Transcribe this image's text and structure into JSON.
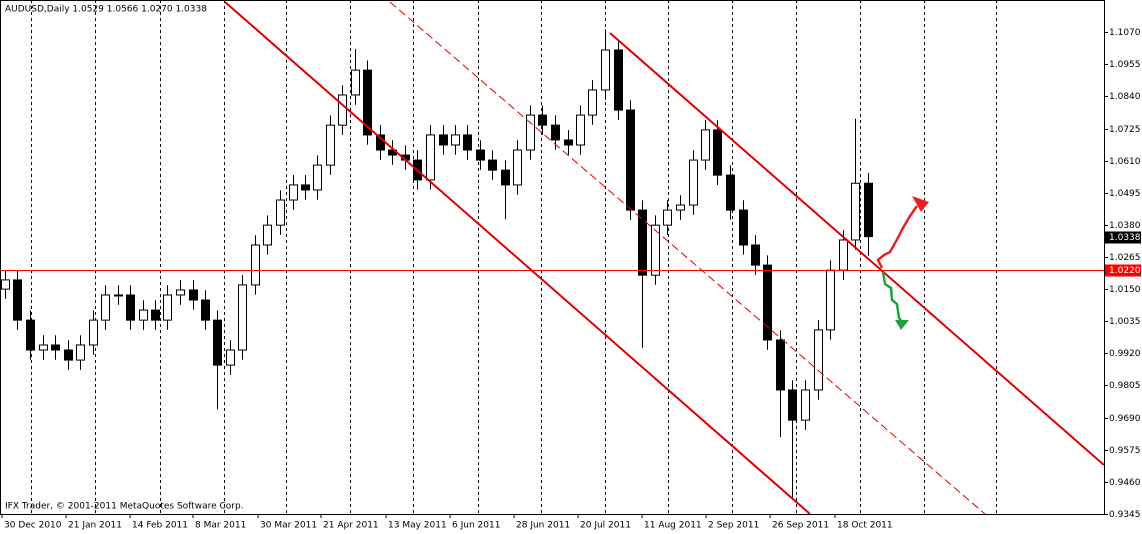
{
  "chart_data": {
    "type": "candlestick",
    "title": "AUDUSD,Daily  1.0529 1.0566 1.0270 1.0338",
    "footer": "IFX Trader, © 2001-2011 MetaQuotes Software Corp.",
    "open": [
      1.015,
      1.0183,
      1.0039,
      0.9932,
      0.995,
      0.9932,
      0.9896,
      0.995,
      1.0039,
      1.0129,
      1.0129,
      1.0039,
      1.0075,
      1.0039,
      1.0129,
      1.0147,
      1.0111,
      1.0039,
      0.9878,
      0.9932,
      1.0165,
      1.0308,
      1.0379,
      1.0469,
      1.0523,
      1.0505,
      1.0594,
      1.0737,
      1.0845,
      1.0934,
      1.0702,
      1.0648,
      1.063,
      1.0612,
      1.0541,
      1.0702,
      1.0666,
      1.0702,
      1.0648,
      1.0612,
      1.0576,
      1.0523,
      1.0648,
      1.0773,
      1.0737,
      1.0684,
      1.0666,
      1.0773,
      1.0863,
      1.1006,
      1.0791,
      1.0433,
      1.02,
      1.0379,
      1.0433,
      1.0451,
      1.0612,
      1.072,
      1.0558,
      1.0433,
      1.0308,
      1.0236,
      0.9968,
      0.9789,
      0.9681,
      0.9789,
      1.0004,
      1.0218,
      1.0326,
      1.0529
    ],
    "high": [
      1.0218,
      1.0218,
      1.0074,
      0.9985,
      0.9985,
      0.9967,
      0.9985,
      1.0074,
      1.0164,
      1.0164,
      1.0164,
      1.011,
      1.011,
      1.0164,
      1.0182,
      1.0182,
      1.0146,
      1.0074,
      0.9967,
      1.02,
      1.0343,
      1.0414,
      1.0504,
      1.0558,
      1.0558,
      1.0629,
      1.0772,
      1.088,
      1.101,
      1.0969,
      1.0737,
      1.0683,
      1.0665,
      1.0647,
      1.0737,
      1.0737,
      1.0737,
      1.0737,
      1.0683,
      1.0647,
      1.0611,
      1.0683,
      1.0808,
      1.0808,
      1.0772,
      1.0719,
      1.0808,
      1.0898,
      1.108,
      1.1041,
      1.0826,
      1.0468,
      1.0414,
      1.0468,
      1.0486,
      1.0647,
      1.0755,
      1.0755,
      1.0593,
      1.0468,
      1.0343,
      1.0271,
      1.0003,
      0.9824,
      0.9824,
      1.0039,
      1.0253,
      1.0361,
      1.076,
      1.0566
    ],
    "low": [
      1.0115,
      1.0004,
      0.9897,
      0.9897,
      0.9897,
      0.9861,
      0.9861,
      0.9915,
      1.0004,
      1.0094,
      1.0004,
      1.0004,
      1.0004,
      1.0004,
      1.0094,
      1.0076,
      1.0004,
      0.972,
      0.9843,
      0.9897,
      1.013,
      1.0273,
      1.0344,
      1.0434,
      1.047,
      1.047,
      1.0559,
      1.0702,
      1.081,
      1.0667,
      1.0613,
      1.0595,
      1.0577,
      1.0506,
      1.0506,
      1.0631,
      1.0631,
      1.0613,
      1.0577,
      1.0541,
      1.04,
      1.0488,
      1.0613,
      1.0702,
      1.0649,
      1.0631,
      1.0631,
      1.0738,
      1.0828,
      1.0756,
      1.0398,
      0.994,
      1.0165,
      1.0344,
      1.0398,
      1.0416,
      1.0577,
      1.0523,
      1.0398,
      1.0273,
      1.0201,
      0.9933,
      0.962,
      0.94,
      0.9646,
      0.9754,
      0.9969,
      1.0183,
      1.0291,
      1.027
    ],
    "close": [
      1.0183,
      1.0039,
      0.9932,
      0.995,
      0.9932,
      0.9896,
      0.995,
      1.0039,
      1.0129,
      1.0129,
      1.0039,
      1.0075,
      1.0039,
      1.0129,
      1.0147,
      1.0111,
      1.0039,
      0.9878,
      0.9932,
      1.0165,
      1.0308,
      1.0379,
      1.0469,
      1.0523,
      1.0505,
      1.0594,
      1.0737,
      1.0845,
      1.0934,
      1.0702,
      1.0648,
      1.063,
      1.0612,
      1.0541,
      1.0702,
      1.0666,
      1.0702,
      1.0648,
      1.0612,
      1.0576,
      1.0523,
      1.0648,
      1.0773,
      1.0737,
      1.0684,
      1.0666,
      1.0773,
      1.0863,
      1.1006,
      1.0791,
      1.0433,
      1.02,
      1.0379,
      1.0433,
      1.0451,
      1.0612,
      1.072,
      1.0558,
      1.0433,
      1.0308,
      1.0236,
      0.9968,
      0.9789,
      0.9681,
      0.9789,
      1.0004,
      1.0218,
      1.0326,
      1.0529,
      1.0338
    ],
    "up_color": "#ffffff",
    "down_color": "#000000",
    "xlim": [
      -0.4,
      87.92
    ],
    "xticks": [
      {
        "value": -0.24,
        "label": "30 Dec 2010"
      },
      {
        "value": 4.88,
        "label": "21 Jan 2011"
      },
      {
        "value": 10,
        "label": "14 Feb 2011"
      },
      {
        "value": 15.04,
        "label": "8 Mar 2011"
      },
      {
        "value": 20.24,
        "label": "30 Mar 2011"
      },
      {
        "value": 25.28,
        "label": "21 Apr 2011"
      },
      {
        "value": 30.48,
        "label": "13 May 2011"
      },
      {
        "value": 35.6,
        "label": "6 Jun 2011"
      },
      {
        "value": 40.72,
        "label": "28 Jun 2011"
      },
      {
        "value": 45.84,
        "label": "20 Jul 2011"
      },
      {
        "value": 50.96,
        "label": "11 Aug 2011"
      },
      {
        "value": 56.08,
        "label": "2 Sep 2011"
      },
      {
        "value": 61.2,
        "label": "26 Sep 2011"
      },
      {
        "value": 66.4,
        "label": "18 Oct 2011"
      }
    ],
    "xgrid": [
      2.08,
      7.2,
      12.4,
      17.52,
      22.48,
      27.6,
      32.64,
      37.84,
      42.88,
      48,
      53.04,
      58.16,
      63.28,
      68.4,
      73.52,
      79.28
    ],
    "grid": true,
    "ylim": [
      0.9345,
      1.1185
    ],
    "yticks": [
      {
        "value": 1.107,
        "label": "1.1070"
      },
      {
        "value": 1.0955,
        "label": "1.0955"
      },
      {
        "value": 1.084,
        "label": "1.0840"
      },
      {
        "value": 1.0725,
        "label": "1.0725"
      },
      {
        "value": 1.061,
        "label": "1.0610"
      },
      {
        "value": 1.0495,
        "label": "1.0495"
      },
      {
        "value": 1.038,
        "label": "1.0380"
      },
      {
        "value": 1.0265,
        "label": "1.0265"
      },
      {
        "value": 1.015,
        "label": "1.0150"
      },
      {
        "value": 1.0035,
        "label": "1.0035"
      },
      {
        "value": 0.992,
        "label": "0.9920"
      },
      {
        "value": 0.9805,
        "label": "0.9805"
      },
      {
        "value": 0.969,
        "label": "0.9690"
      },
      {
        "value": 0.9575,
        "label": "0.9575"
      },
      {
        "value": 0.946,
        "label": "0.9460"
      },
      {
        "value": 0.9345,
        "label": "0.9345"
      }
    ],
    "hline": {
      "value": 1.022,
      "label": "1.0220",
      "color": "#ff0000"
    },
    "current_price": {
      "value": 1.0338,
      "label": "1.0338"
    }
  }
}
